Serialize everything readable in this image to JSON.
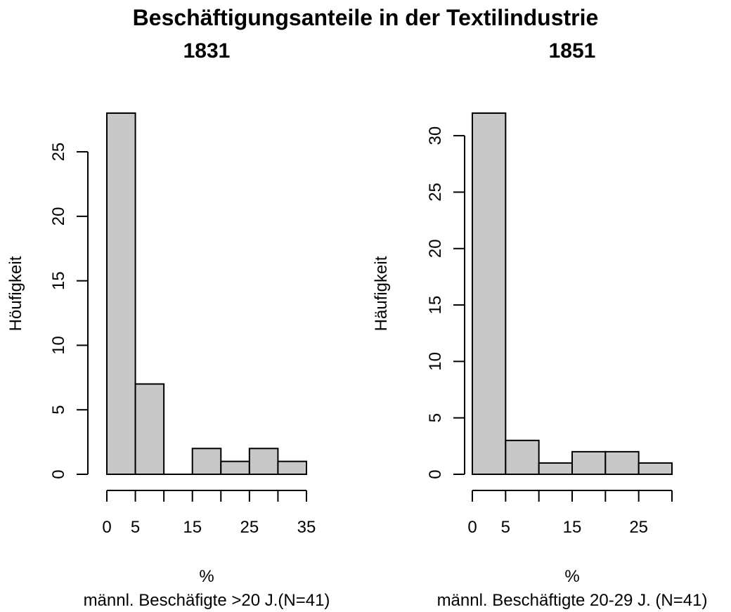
{
  "figure_title": "Beschäftigungsanteile in der Textilindustrie",
  "colors": {
    "bar_fill": "#c8c8c8",
    "bar_stroke": "#000000",
    "axis": "#000000",
    "background": "#ffffff"
  },
  "chart_data": [
    {
      "type": "bar",
      "title": "1831",
      "xlabel": "%",
      "sublabel": "männl. Beschäfigte >20 J.(N=41)",
      "ylabel": "Höufigkeit",
      "bins": [
        [
          0,
          5
        ],
        [
          5,
          10
        ],
        [
          10,
          15
        ],
        [
          15,
          20
        ],
        [
          20,
          25
        ],
        [
          25,
          30
        ],
        [
          30,
          35
        ]
      ],
      "values": [
        28,
        7,
        0,
        2,
        1,
        2,
        1
      ],
      "xlim": [
        0,
        35
      ],
      "ylim": [
        0,
        28
      ],
      "xticks": [
        0,
        5,
        10,
        15,
        20,
        25,
        30,
        35
      ],
      "xtick_labels": [
        "0",
        "5",
        "",
        "15",
        "",
        "25",
        "",
        "35"
      ],
      "yticks": [
        0,
        5,
        10,
        15,
        20,
        25
      ],
      "ytick_labels": [
        "0",
        "5",
        "10",
        "15",
        "20",
        "25"
      ],
      "grid": false
    },
    {
      "type": "bar",
      "title": "1851",
      "xlabel": "%",
      "sublabel": "männl. Beschäftigte 20-29 J. (N=41)",
      "ylabel": "Häufigkeit",
      "bins": [
        [
          0,
          5
        ],
        [
          5,
          10
        ],
        [
          10,
          15
        ],
        [
          15,
          20
        ],
        [
          20,
          25
        ],
        [
          25,
          30
        ]
      ],
      "values": [
        32,
        3,
        1,
        2,
        2,
        1
      ],
      "xlim": [
        0,
        30
      ],
      "ylim": [
        0,
        32
      ],
      "xticks": [
        0,
        5,
        10,
        15,
        20,
        25,
        30
      ],
      "xtick_labels": [
        "0",
        "5",
        "",
        "15",
        "",
        "25",
        ""
      ],
      "yticks": [
        0,
        5,
        10,
        15,
        20,
        25,
        30
      ],
      "ytick_labels": [
        "0",
        "5",
        "10",
        "15",
        "20",
        "25",
        "30"
      ],
      "grid": false
    }
  ]
}
